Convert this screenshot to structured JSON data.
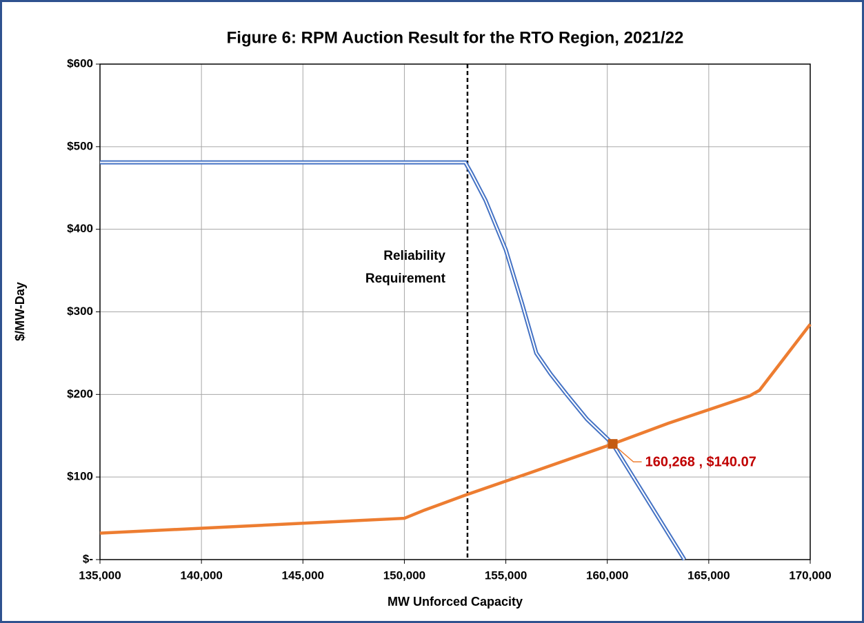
{
  "chart_data": {
    "type": "line",
    "title": "Figure 6:  RPM Auction Result for the RTO Region, 2021/22",
    "xlabel": "MW Unforced Capacity",
    "ylabel": "$/MW-Day",
    "xlim": [
      135000,
      170000
    ],
    "ylim": [
      0,
      600
    ],
    "xticks": [
      {
        "value": 135000,
        "label": "135,000"
      },
      {
        "value": 140000,
        "label": "140,000"
      },
      {
        "value": 145000,
        "label": "145,000"
      },
      {
        "value": 150000,
        "label": "150,000"
      },
      {
        "value": 155000,
        "label": "155,000"
      },
      {
        "value": 160000,
        "label": "160,000"
      },
      {
        "value": 165000,
        "label": "165,000"
      },
      {
        "value": 170000,
        "label": "170,000"
      }
    ],
    "yticks": [
      {
        "value": 0,
        "label": "$-"
      },
      {
        "value": 100,
        "label": "$100"
      },
      {
        "value": 200,
        "label": "$200"
      },
      {
        "value": 300,
        "label": "$300"
      },
      {
        "value": 400,
        "label": "$400"
      },
      {
        "value": 500,
        "label": "$500"
      },
      {
        "value": 600,
        "label": "$600"
      }
    ],
    "grid": true,
    "series": [
      {
        "color": "#4472c4",
        "style": "double",
        "x": [
          135000,
          153000,
          153300,
          154000,
          155000,
          155800,
          156500,
          157200,
          158000,
          159000,
          160268,
          163800
        ],
        "values": [
          481,
          481,
          468,
          435,
          375,
          310,
          250,
          225,
          200,
          170,
          140.07,
          0
        ]
      },
      {
        "color": "#ed7d31",
        "style": "solid",
        "x": [
          135000,
          140000,
          145000,
          150000,
          151000,
          153000,
          155000,
          157000,
          160268,
          163000,
          167000,
          167500,
          170000
        ],
        "values": [
          32,
          38,
          44,
          50,
          60,
          78,
          95,
          112,
          140.07,
          165,
          198,
          205,
          285
        ]
      }
    ],
    "reliability_requirement": {
      "x": 153110,
      "label": [
        "Reliability",
        "Requirement"
      ]
    },
    "point": {
      "x": 160268,
      "y": 140.07,
      "label": "160,268 , $140.07",
      "color": "#c00000"
    }
  }
}
